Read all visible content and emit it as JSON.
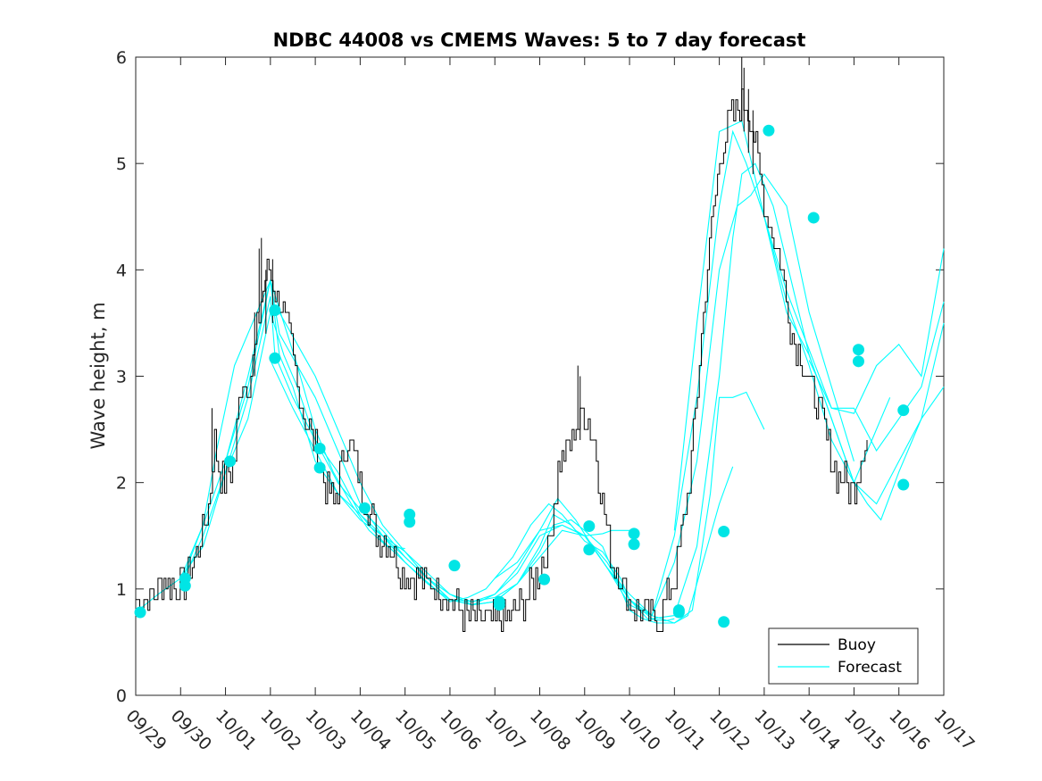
{
  "chart_data": {
    "type": "line",
    "title": "NDBC 44008 vs CMEMS Waves: 5 to 7 day forecast",
    "xlabel": "",
    "ylabel": "Wave height, m",
    "xlim": [
      0,
      18
    ],
    "ylim": [
      0,
      6
    ],
    "x_tick_labels": [
      "09/29",
      "09/30",
      "10/01",
      "10/02",
      "10/03",
      "10/04",
      "10/05",
      "10/06",
      "10/07",
      "10/08",
      "10/09",
      "10/10",
      "10/11",
      "10/12",
      "10/13",
      "10/14",
      "10/15",
      "10/16",
      "10/17"
    ],
    "y_ticks": [
      0,
      1,
      2,
      3,
      4,
      5,
      6
    ],
    "grid": false,
    "legend": {
      "position": "bottom-right",
      "entries": [
        "Buoy",
        "Forecast"
      ]
    },
    "colors": {
      "buoy": "#000000",
      "forecast": "#00ffff",
      "marker": "#00e5e5",
      "axis": "#262626"
    },
    "buoy_anchors": [
      [
        0.0,
        0.9
      ],
      [
        0.3,
        0.9
      ],
      [
        0.6,
        1.1
      ],
      [
        1.0,
        1.0
      ],
      [
        1.3,
        1.3
      ],
      [
        1.6,
        1.7
      ],
      [
        1.75,
        2.4
      ],
      [
        1.85,
        2.1
      ],
      [
        2.0,
        2.0
      ],
      [
        2.2,
        2.2
      ],
      [
        2.35,
        3.0
      ],
      [
        2.5,
        2.9
      ],
      [
        2.7,
        3.4
      ],
      [
        2.85,
        3.9
      ],
      [
        3.0,
        4.0
      ],
      [
        3.1,
        3.8
      ],
      [
        3.2,
        3.7
      ],
      [
        3.4,
        3.4
      ],
      [
        3.6,
        2.9
      ],
      [
        3.8,
        2.6
      ],
      [
        4.0,
        2.3
      ],
      [
        4.2,
        2.0
      ],
      [
        4.4,
        1.8
      ],
      [
        4.5,
        1.95
      ],
      [
        4.7,
        2.4
      ],
      [
        4.85,
        2.3
      ],
      [
        5.0,
        2.0
      ],
      [
        5.2,
        1.7
      ],
      [
        5.4,
        1.5
      ],
      [
        5.6,
        1.45
      ],
      [
        5.8,
        1.3
      ],
      [
        6.0,
        1.1
      ],
      [
        6.3,
        1.1
      ],
      [
        6.6,
        1.05
      ],
      [
        6.9,
        0.95
      ],
      [
        7.1,
        0.85
      ],
      [
        7.3,
        0.75
      ],
      [
        7.6,
        0.7
      ],
      [
        7.9,
        0.7
      ],
      [
        8.2,
        0.7
      ],
      [
        8.4,
        0.75
      ],
      [
        8.6,
        0.85
      ],
      [
        8.8,
        1.0
      ],
      [
        9.0,
        1.2
      ],
      [
        9.2,
        1.4
      ],
      [
        9.4,
        2.1
      ],
      [
        9.6,
        2.3
      ],
      [
        9.8,
        2.5
      ],
      [
        10.0,
        2.7
      ],
      [
        10.2,
        2.4
      ],
      [
        10.4,
        1.8
      ],
      [
        10.6,
        1.3
      ],
      [
        10.8,
        1.1
      ],
      [
        11.0,
        0.9
      ],
      [
        11.2,
        0.8
      ],
      [
        11.4,
        0.7
      ],
      [
        11.6,
        0.7
      ],
      [
        11.8,
        0.85
      ],
      [
        12.0,
        1.1
      ],
      [
        12.2,
        1.6
      ],
      [
        12.4,
        2.3
      ],
      [
        12.6,
        3.4
      ],
      [
        12.8,
        4.3
      ],
      [
        13.0,
        5.0
      ],
      [
        13.2,
        5.4
      ],
      [
        13.4,
        5.5
      ],
      [
        13.6,
        5.6
      ],
      [
        13.8,
        5.2
      ],
      [
        14.0,
        4.6
      ],
      [
        14.2,
        4.3
      ],
      [
        14.4,
        4.0
      ],
      [
        14.6,
        3.4
      ],
      [
        14.8,
        3.2
      ],
      [
        15.0,
        2.9
      ],
      [
        15.2,
        2.7
      ],
      [
        15.4,
        2.4
      ],
      [
        15.6,
        2.1
      ],
      [
        15.8,
        2.0
      ],
      [
        16.0,
        1.9
      ],
      [
        16.2,
        2.4
      ],
      [
        16.3,
        2.4
      ]
    ],
    "buoy_spikes": [
      [
        2.75,
        4.2
      ],
      [
        2.8,
        4.3
      ],
      [
        2.9,
        4.0
      ],
      [
        3.05,
        4.1
      ],
      [
        2.65,
        3.6
      ],
      [
        1.7,
        2.7
      ],
      [
        9.85,
        3.1
      ],
      [
        9.9,
        3.0
      ],
      [
        13.5,
        6.0
      ],
      [
        13.55,
        5.9
      ],
      [
        13.65,
        5.7
      ],
      [
        13.75,
        5.5
      ]
    ],
    "forecast_series": [
      {
        "name": "Forecast 1",
        "x": [
          0.0,
          0.5,
          1.0,
          1.5,
          1.8,
          2.0,
          2.2,
          2.5,
          2.8,
          3.0,
          3.3,
          3.6,
          4.0,
          4.4,
          4.8,
          5.2,
          5.6,
          6.0
        ],
        "values": [
          0.78,
          0.95,
          1.1,
          1.6,
          2.3,
          2.7,
          3.1,
          3.4,
          3.7,
          3.9,
          3.5,
          3.1,
          2.5,
          2.1,
          1.8,
          1.55,
          1.4,
          1.38
        ]
      },
      {
        "name": "Forecast 2",
        "x": [
          1.0,
          1.5,
          2.0,
          2.5,
          2.8,
          3.0,
          3.2,
          3.6,
          4.0,
          4.5,
          5.0,
          5.5,
          6.0,
          6.4,
          6.8,
          7.0,
          7.4,
          7.8,
          8.0,
          8.4,
          8.8,
          9.2,
          9.5,
          9.8,
          10.0,
          10.4,
          10.6,
          11.0
        ],
        "values": [
          1.05,
          1.6,
          2.2,
          2.9,
          3.5,
          3.9,
          3.4,
          3.1,
          2.8,
          2.3,
          1.8,
          1.5,
          1.25,
          1.1,
          0.95,
          0.88,
          0.92,
          1.0,
          1.1,
          1.3,
          1.6,
          1.8,
          1.7,
          1.55,
          1.5,
          1.52,
          1.55,
          1.55
        ]
      },
      {
        "name": "Forecast 3",
        "x": [
          1.0,
          1.5,
          2.0,
          2.5,
          3.0,
          3.2,
          3.6,
          4.0,
          4.5,
          5.0,
          5.5,
          6.0,
          6.5,
          7.0,
          7.5,
          8.0,
          8.5,
          9.0,
          9.3,
          9.7,
          10.0,
          10.4,
          10.8,
          11.0,
          11.4,
          11.8,
          12.0
        ],
        "values": [
          1.03,
          1.5,
          2.1,
          2.6,
          3.6,
          3.6,
          3.3,
          3.0,
          2.5,
          2.0,
          1.6,
          1.35,
          1.15,
          0.95,
          0.85,
          0.88,
          1.05,
          1.4,
          1.7,
          1.6,
          1.45,
          1.35,
          1.1,
          0.9,
          0.72,
          0.7,
          0.72
        ]
      },
      {
        "name": "Forecast 4",
        "x": [
          1.0,
          1.5,
          2.0,
          2.5,
          3.0,
          3.1,
          3.5,
          4.0,
          4.5,
          5.0,
          5.5,
          6.0,
          6.5,
          7.0,
          7.5,
          8.0,
          8.5,
          9.0,
          9.4,
          9.8,
          10.1,
          10.5,
          11.0,
          11.5,
          12.0,
          12.4,
          12.8,
          13.0,
          13.3,
          13.6,
          14.0
        ],
        "values": [
          1.1,
          1.4,
          2.1,
          2.8,
          3.75,
          3.2,
          2.8,
          2.4,
          2.1,
          1.7,
          1.45,
          1.25,
          1.05,
          0.9,
          0.85,
          0.95,
          1.2,
          1.55,
          1.85,
          1.65,
          1.45,
          1.2,
          0.95,
          0.75,
          0.68,
          0.8,
          1.9,
          2.8,
          2.8,
          2.85,
          2.5
        ]
      },
      {
        "name": "Forecast 5",
        "x": [
          2.0,
          2.5,
          3.0,
          3.2,
          3.5,
          4.0,
          4.5,
          5.0,
          5.5,
          6.0,
          6.5,
          7.0,
          7.5,
          8.0,
          8.5,
          9.0,
          9.3,
          9.7,
          10.0,
          10.4,
          11.0,
          11.3,
          11.6,
          12.0,
          12.3,
          12.6,
          13.0,
          13.3
        ],
        "values": [
          2.2,
          3.0,
          3.9,
          3.2,
          2.9,
          2.2,
          1.9,
          1.7,
          1.5,
          1.3,
          1.1,
          0.9,
          0.88,
          0.92,
          1.05,
          1.35,
          1.6,
          1.65,
          1.55,
          1.4,
          0.8,
          0.72,
          0.68,
          0.68,
          0.75,
          1.2,
          1.8,
          2.15
        ]
      },
      {
        "name": "Forecast 6",
        "x": [
          3.0,
          3.3,
          3.6,
          4.0,
          4.5,
          5.0,
          5.5,
          6.0,
          6.5,
          7.0,
          7.5,
          8.0,
          8.5,
          9.0,
          9.5,
          10.0,
          10.5,
          11.0,
          11.5,
          12.0,
          12.5,
          13.0,
          13.4,
          13.7,
          14.0,
          14.5,
          15.0,
          15.5,
          16.0
        ],
        "values": [
          3.6,
          3.2,
          2.9,
          2.4,
          2.0,
          1.75,
          1.55,
          1.3,
          1.1,
          0.95,
          0.88,
          0.95,
          1.15,
          1.5,
          1.6,
          1.5,
          1.25,
          0.9,
          0.75,
          1.25,
          2.2,
          4.0,
          4.6,
          4.7,
          4.9,
          4.6,
          3.6,
          2.9,
          2.2
        ]
      },
      {
        "name": "Forecast 7",
        "x": [
          3.0,
          3.5,
          4.0,
          4.5,
          5.0,
          5.5,
          6.0,
          6.5,
          7.0,
          7.5,
          8.0,
          8.5,
          9.0,
          9.5,
          10.0,
          10.5,
          11.0,
          11.5,
          12.0,
          12.5,
          13.0,
          13.3,
          13.5,
          13.8,
          14.2,
          14.6,
          15.0,
          15.5,
          16.0,
          16.3,
          16.6,
          16.8
        ],
        "values": [
          3.15,
          2.7,
          2.3,
          1.9,
          1.65,
          1.5,
          1.35,
          1.1,
          0.9,
          0.85,
          0.88,
          1.05,
          1.3,
          1.55,
          1.5,
          1.2,
          0.9,
          0.72,
          0.75,
          1.4,
          3.0,
          4.3,
          4.9,
          5.0,
          4.6,
          3.9,
          3.2,
          2.6,
          2.0,
          2.3,
          2.6,
          2.8
        ]
      },
      {
        "name": "Forecast 8",
        "x": [
          8.0,
          8.5,
          9.0,
          9.5,
          10.0,
          10.5,
          11.0,
          11.5,
          12.0,
          12.5,
          13.0,
          13.3,
          13.6,
          14.0,
          14.5,
          15.0,
          15.5,
          16.0,
          16.5,
          17.0,
          17.5,
          18.0
        ],
        "values": [
          1.1,
          1.25,
          1.55,
          1.6,
          1.5,
          1.2,
          0.85,
          0.75,
          1.5,
          2.8,
          4.6,
          5.3,
          5.0,
          4.5,
          3.6,
          3.2,
          2.6,
          2.0,
          1.8,
          2.2,
          2.6,
          3.5
        ]
      },
      {
        "name": "Forecast 9",
        "x": [
          12.0,
          12.5,
          13.0,
          13.5,
          14.0,
          14.5,
          15.0,
          15.5,
          16.0,
          16.5,
          17.0,
          17.5,
          18.0
        ],
        "values": [
          1.55,
          3.5,
          5.3,
          5.4,
          4.5,
          3.8,
          3.25,
          2.7,
          2.65,
          3.1,
          3.3,
          3.0,
          4.2
        ]
      },
      {
        "name": "Forecast 10",
        "x": [
          14.0,
          14.5,
          15.0,
          15.5,
          16.0,
          16.3,
          16.6,
          17.0,
          17.5,
          18.0
        ],
        "values": [
          4.5,
          3.7,
          3.1,
          2.4,
          2.0,
          1.8,
          1.65,
          2.1,
          2.6,
          2.9
        ]
      },
      {
        "name": "Forecast 11",
        "x": [
          15.0,
          15.5,
          16.0,
          16.5,
          17.0,
          17.5,
          18.0
        ],
        "values": [
          3.15,
          2.7,
          2.7,
          2.3,
          2.6,
          2.9,
          3.7
        ]
      }
    ],
    "forecast_markers": [
      [
        0.1,
        0.78
      ],
      [
        1.1,
        1.03
      ],
      [
        1.1,
        1.1
      ],
      [
        2.1,
        2.2
      ],
      [
        3.1,
        3.62
      ],
      [
        3.1,
        3.17
      ],
      [
        4.1,
        2.32
      ],
      [
        4.1,
        2.14
      ],
      [
        5.1,
        1.76
      ],
      [
        6.1,
        1.7
      ],
      [
        6.1,
        1.63
      ],
      [
        7.1,
        1.22
      ],
      [
        8.1,
        0.88
      ],
      [
        8.1,
        0.85
      ],
      [
        9.1,
        1.09
      ],
      [
        10.1,
        1.59
      ],
      [
        10.1,
        1.37
      ],
      [
        11.1,
        1.52
      ],
      [
        11.1,
        1.42
      ],
      [
        12.1,
        0.8
      ],
      [
        12.1,
        0.78
      ],
      [
        13.1,
        1.54
      ],
      [
        13.1,
        0.69
      ],
      [
        14.1,
        5.31
      ],
      [
        15.1,
        4.49
      ],
      [
        16.1,
        3.25
      ],
      [
        16.1,
        3.14
      ],
      [
        17.1,
        2.68
      ],
      [
        17.1,
        1.98
      ]
    ]
  }
}
